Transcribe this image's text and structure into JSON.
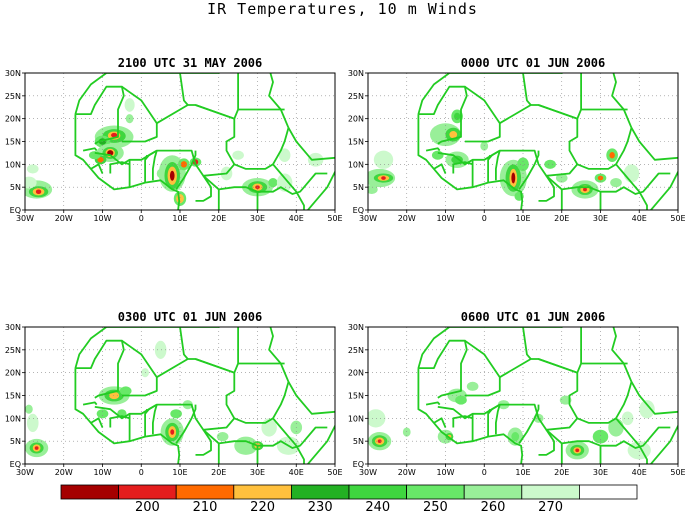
{
  "title": "IR Temperatures, 10 m Winds",
  "lon_labels": [
    "30W",
    "20W",
    "10W",
    "0",
    "10E",
    "20E",
    "30E",
    "40E",
    "50E"
  ],
  "lat_labels": [
    "EQ",
    "5N",
    "10N",
    "15N",
    "20N",
    "25N",
    "30N"
  ],
  "panels": [
    {
      "title": "2100 UTC 31 MAY 2006"
    },
    {
      "title": "0000 UTC 01 JUN 2006"
    },
    {
      "title": "0300 UTC 01 JUN 2006"
    },
    {
      "title": "0600 UTC 01 JUN 2006"
    }
  ],
  "colorbar": {
    "colors": [
      "#a50000",
      "#e41d1d",
      "#ff6a00",
      "#ffc03d",
      "#23b123",
      "#3fd63f",
      "#68e868",
      "#99ef99",
      "#ccf9cc",
      "#ffffff"
    ],
    "labels": [
      "200",
      "210",
      "220",
      "230",
      "240",
      "250",
      "260",
      "270"
    ]
  },
  "colors": {
    "coast": "#22cc22",
    "grid": "#888888"
  }
}
